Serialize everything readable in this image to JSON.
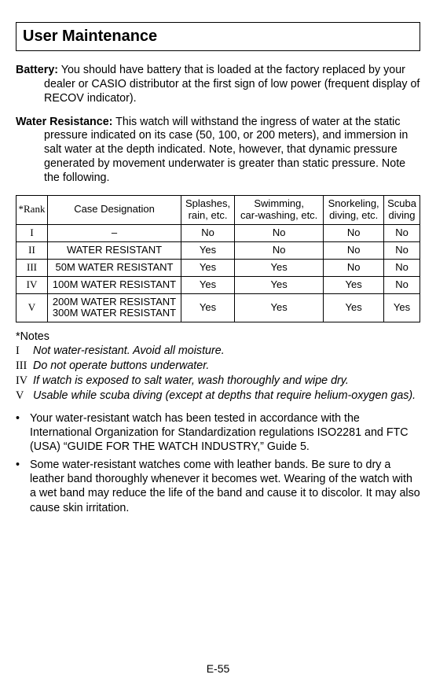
{
  "title": "User Maintenance",
  "battery": {
    "label": "Battery:",
    "text": "You should have battery that is loaded at the factory replaced by your dealer or CASIO distributor at the first sign of low power (frequent display of RECOV indicator)."
  },
  "water": {
    "label": "Water Resistance:",
    "text": "This watch will withstand the ingress of water at the static pressure indicated on its case (50, 100, or 200 meters), and immersion in salt water at the depth indicated. Note, however, that dynamic pressure generated by movement underwater is greater than static pressure. Note the following."
  },
  "table": {
    "headers": {
      "rank": "*Rank",
      "designation": "Case Designation",
      "col1a": "Splashes,",
      "col1b": "rain, etc.",
      "col2a": "Swimming,",
      "col2b": "car-washing, etc.",
      "col3a": "Snorkeling,",
      "col3b": "diving, etc.",
      "col4a": "Scuba",
      "col4b": "diving"
    },
    "rows": [
      {
        "rank": "I",
        "des": "–",
        "c1": "No",
        "c2": "No",
        "c3": "No",
        "c4": "No"
      },
      {
        "rank": "II",
        "des": "WATER RESISTANT",
        "c1": "Yes",
        "c2": "No",
        "c3": "No",
        "c4": "No"
      },
      {
        "rank": "III",
        "des": "50M WATER RESISTANT",
        "c1": "Yes",
        "c2": "Yes",
        "c3": "No",
        "c4": "No"
      },
      {
        "rank": "IV",
        "des": "100M WATER RESISTANT",
        "c1": "Yes",
        "c2": "Yes",
        "c3": "Yes",
        "c4": "No"
      },
      {
        "rank": "V",
        "desA": "200M WATER RESISTANT",
        "desB": "300M WATER RESISTANT",
        "c1": "Yes",
        "c2": "Yes",
        "c3": "Yes",
        "c4": "Yes"
      }
    ]
  },
  "notesHead": "*Notes",
  "notes": [
    {
      "n": "I",
      "t": "Not water-resistant. Avoid all moisture."
    },
    {
      "n": "III",
      "t": "Do not operate buttons underwater."
    },
    {
      "n": "IV",
      "t": "If watch is exposed to salt water, wash thoroughly and wipe dry."
    },
    {
      "n": "V",
      "t": "Usable while scuba diving (except at depths that require helium-oxygen gas)."
    }
  ],
  "bullets": [
    "Your water-resistant watch has been tested in accordance with the International Organization for Standardization regulations ISO2281 and FTC (USA) “GUIDE FOR THE WATCH INDUSTRY,” Guide 5.",
    "Some water-resistant watches come with leather bands. Be sure to dry a leather band thoroughly whenever it becomes wet. Wearing of the watch with a wet band may reduce the life of the band and cause it to discolor. It may also cause skin irritation."
  ],
  "pageNumber": "E-55"
}
